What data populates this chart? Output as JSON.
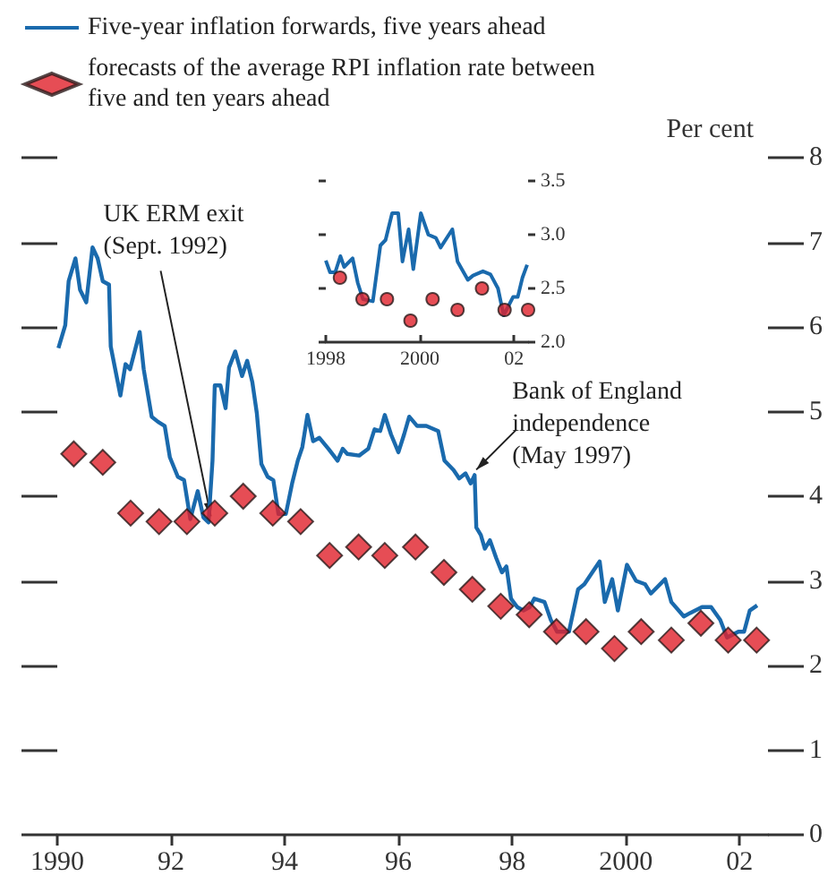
{
  "chart_data": [
    {
      "type": "line",
      "ylabel": "Per cent",
      "legend": "top left",
      "xlim": [
        1990,
        2002.5
      ],
      "xticks": [
        {
          "value": 1990,
          "label": "1990"
        },
        {
          "value": 1992,
          "label": "92"
        },
        {
          "value": 1994,
          "label": "94"
        },
        {
          "value": 1996,
          "label": "96"
        },
        {
          "value": 1998,
          "label": "98"
        },
        {
          "value": 2000,
          "label": "2000"
        },
        {
          "value": 2002,
          "label": "02"
        }
      ],
      "ylim": [
        0,
        8
      ],
      "yticks": [
        0,
        1,
        2,
        3,
        4,
        5,
        6,
        7,
        8
      ],
      "annotations": [
        {
          "text": "UK ERM exit (Sept. 1992)",
          "x": 1992.7,
          "y": 3.7
        },
        {
          "text": "Bank of England independence (May 1997)",
          "x": 1997.37,
          "y": 4.25
        }
      ],
      "series": [
        {
          "name": "Five-year inflation forwards, five years ahead",
          "type": "line",
          "color": "#1a6aad",
          "marker": "none",
          "x": [
            1990.02,
            1990.14,
            1990.2,
            1990.32,
            1990.4,
            1990.51,
            1990.62,
            1990.71,
            1990.8,
            1990.91,
            1990.94,
            1991.11,
            1991.2,
            1991.28,
            1991.45,
            1991.52,
            1991.66,
            1991.77,
            1991.89,
            1991.98,
            1992.12,
            1992.23,
            1992.34,
            1992.47,
            1992.57,
            1992.66,
            1992.73,
            1992.77,
            1992.87,
            1992.96,
            1993.02,
            1993.13,
            1993.25,
            1993.34,
            1993.43,
            1993.51,
            1993.59,
            1993.7,
            1993.8,
            1993.89,
            1994.02,
            1994.13,
            1994.23,
            1994.31,
            1994.4,
            1994.5,
            1994.61,
            1994.77,
            1994.93,
            1995.02,
            1995.1,
            1995.31,
            1995.47,
            1995.58,
            1995.68,
            1995.76,
            1995.87,
            1996.0,
            1996.1,
            1996.19,
            1996.33,
            1996.49,
            1996.7,
            1996.81,
            1996.97,
            1997.07,
            1997.18,
            1997.27,
            1997.34,
            1997.37,
            1997.45,
            1997.52,
            1997.61,
            1997.72,
            1997.82,
            1997.9,
            1997.98,
            1998.09,
            1998.2,
            1998.31,
            1998.39,
            1998.57,
            1998.68,
            1998.79,
            1999.0,
            1999.16,
            1999.27,
            1999.41,
            1999.54,
            1999.63,
            1999.76,
            1999.86,
            2000.02,
            2000.18,
            2000.34,
            2000.44,
            2000.69,
            2000.8,
            2001.02,
            2001.13,
            2001.34,
            2001.5,
            2001.66,
            2001.78,
            2001.98,
            2002.08,
            2002.18,
            2002.31
          ],
          "values": [
            5.75,
            6.02,
            6.54,
            6.81,
            6.44,
            6.29,
            6.94,
            6.81,
            6.54,
            6.5,
            5.77,
            5.19,
            5.56,
            5.5,
            5.94,
            5.5,
            4.94,
            4.88,
            4.83,
            4.46,
            4.23,
            4.19,
            3.73,
            4.06,
            3.75,
            3.69,
            4.42,
            5.31,
            5.31,
            5.04,
            5.52,
            5.71,
            5.42,
            5.6,
            5.35,
            4.98,
            4.38,
            4.23,
            4.19,
            3.79,
            3.79,
            4.15,
            4.42,
            4.58,
            4.96,
            4.65,
            4.69,
            4.56,
            4.42,
            4.56,
            4.5,
            4.48,
            4.56,
            4.79,
            4.77,
            4.96,
            4.73,
            4.52,
            4.73,
            4.94,
            4.83,
            4.83,
            4.77,
            4.42,
            4.31,
            4.21,
            4.27,
            4.15,
            4.25,
            3.63,
            3.54,
            3.38,
            3.48,
            3.27,
            3.1,
            3.17,
            2.79,
            2.69,
            2.65,
            2.69,
            2.79,
            2.75,
            2.54,
            2.4,
            2.4,
            2.9,
            2.96,
            3.1,
            3.23,
            2.75,
            3.02,
            2.65,
            3.19,
            3.0,
            2.96,
            2.85,
            3.02,
            2.75,
            2.58,
            2.62,
            2.69,
            2.69,
            2.54,
            2.33,
            2.4,
            2.4,
            2.65,
            2.71
          ]
        },
        {
          "name": "forecasts of the average RPI inflation rate between five and ten years ahead",
          "type": "scatter",
          "color": "#e0202a",
          "marker": "diamond",
          "x": [
            1990.29,
            1990.8,
            1991.29,
            1991.79,
            1992.28,
            1992.77,
            1993.27,
            1993.79,
            1994.28,
            1994.79,
            1995.3,
            1995.76,
            1996.3,
            1996.8,
            1997.3,
            1997.8,
            1998.3,
            1998.78,
            1999.3,
            1999.8,
            2000.27,
            2000.8,
            2001.32,
            2001.8,
            2002.3
          ],
          "values": [
            4.5,
            4.4,
            3.8,
            3.7,
            3.7,
            3.8,
            4.0,
            3.8,
            3.7,
            3.3,
            3.4,
            3.3,
            3.4,
            3.1,
            2.9,
            2.7,
            2.6,
            2.4,
            2.4,
            2.2,
            2.4,
            2.3,
            2.5,
            2.3,
            2.3
          ]
        }
      ]
    },
    {
      "type": "line",
      "xlim": [
        1998,
        2002.3
      ],
      "xticks": [
        {
          "value": 1998,
          "label": "1998"
        },
        {
          "value": 2000,
          "label": "2000"
        },
        {
          "value": 2002,
          "label": "02"
        }
      ],
      "ylim": [
        2.0,
        3.5
      ],
      "yticks": [
        {
          "value": 2.0,
          "label": "2.0"
        },
        {
          "value": 2.5,
          "label": "2.5"
        },
        {
          "value": 3.0,
          "label": "3.0"
        },
        {
          "value": 3.5,
          "label": "3.5"
        }
      ],
      "series": [
        {
          "type": "line",
          "color": "#1a6aad",
          "marker": "none",
          "x": [
            1998.0,
            1998.09,
            1998.2,
            1998.31,
            1998.39,
            1998.57,
            1998.68,
            1998.79,
            1999.0,
            1999.16,
            1999.27,
            1999.41,
            1999.54,
            1999.63,
            1999.76,
            1999.86,
            2000.02,
            2000.18,
            2000.34,
            2000.44,
            2000.69,
            2000.8,
            2001.02,
            2001.13,
            2001.34,
            2001.5,
            2001.66,
            2001.78,
            2001.98,
            2002.08,
            2002.18,
            2002.28
          ],
          "values": [
            2.76,
            2.65,
            2.65,
            2.8,
            2.7,
            2.78,
            2.55,
            2.4,
            2.38,
            2.9,
            2.95,
            3.2,
            3.2,
            2.75,
            3.05,
            2.68,
            3.2,
            3.0,
            2.97,
            2.88,
            3.05,
            2.75,
            2.58,
            2.62,
            2.66,
            2.63,
            2.5,
            2.25,
            2.42,
            2.42,
            2.6,
            2.72
          ]
        },
        {
          "type": "scatter",
          "color": "#e0202a",
          "marker": "circle",
          "x": [
            1998.3,
            1998.78,
            1999.3,
            1999.8,
            2000.27,
            2000.8,
            2001.32,
            2001.8,
            2002.3
          ],
          "values": [
            2.6,
            2.4,
            2.4,
            2.2,
            2.4,
            2.3,
            2.5,
            2.3,
            2.3
          ]
        }
      ]
    }
  ]
}
